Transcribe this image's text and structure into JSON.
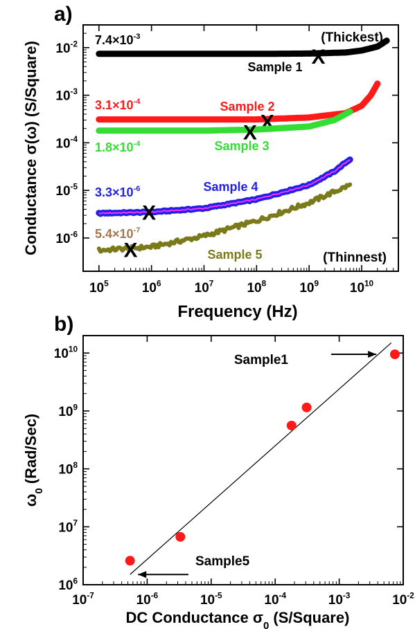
{
  "panel_a_label": "a)",
  "panel_b_label": "b)",
  "colors": {
    "sample1": "#000000",
    "sample2": "#ff1a1a",
    "sample3": "#33dd33",
    "sample4": "#1f1fe6",
    "sample4_overlay": "#ff33ff",
    "sample5": "#7a7a1a",
    "label5_value": "#a07850",
    "points_b": "#ff1a1a"
  },
  "chart_data": [
    {
      "type": "line",
      "panel": "a)",
      "xlabel": "Frequency (Hz)",
      "ylabel": "Conductance σ(ω) (S/Square)",
      "xscale": "log",
      "yscale": "log",
      "xlim": [
        50000,
        50000000000
      ],
      "ylim": [
        2e-07,
        0.03
      ],
      "xticks": [
        {
          "base": "10",
          "exp": "5"
        },
        {
          "base": "10",
          "exp": "6"
        },
        {
          "base": "10",
          "exp": "7"
        },
        {
          "base": "10",
          "exp": "8"
        },
        {
          "base": "10",
          "exp": "9"
        },
        {
          "base": "10",
          "exp": "10"
        }
      ],
      "yticks": [
        {
          "base": "10",
          "exp": "-6"
        },
        {
          "base": "10",
          "exp": "-5"
        },
        {
          "base": "10",
          "exp": "-4"
        },
        {
          "base": "10",
          "exp": "-3"
        },
        {
          "base": "10",
          "exp": "-2"
        }
      ],
      "series": [
        {
          "name": "Sample 1",
          "color_key": "sample1",
          "dc_value": "7.4×10",
          "dc_exp": "-3",
          "x": [
            100000,
            10000000,
            100000000,
            1000000000,
            5000000000,
            10000000000,
            20000000000,
            30000000000
          ],
          "y": [
            0.0074,
            0.0074,
            0.0074,
            0.0075,
            0.0079,
            0.0087,
            0.0105,
            0.014
          ],
          "crossover": [
            1500000000,
            0.0066
          ]
        },
        {
          "name": "Sample 2",
          "color_key": "sample2",
          "dc_value": "3.1×10",
          "dc_exp": "-4",
          "x": [
            100000,
            10000000,
            100000000,
            1000000000,
            5000000000,
            10000000000,
            15000000000,
            20000000000
          ],
          "y": [
            0.00031,
            0.00031,
            0.00031,
            0.00034,
            0.00042,
            0.0006,
            0.001,
            0.00175
          ],
          "crossover": [
            160000000,
            0.00028
          ]
        },
        {
          "name": "Sample 3",
          "color_key": "sample3",
          "dc_value": "1.8×10",
          "dc_exp": "-4",
          "x": [
            100000,
            10000000,
            100000000,
            1000000000,
            3000000000,
            6000000000
          ],
          "y": [
            0.00018,
            0.00018,
            0.00019,
            0.00022,
            0.0003,
            0.00045
          ],
          "crossover": [
            75000000,
            0.00017
          ]
        },
        {
          "name": "Sample 4",
          "color_key": "sample4",
          "dc_value": "3.3×10",
          "dc_exp": "-6",
          "x": [
            100000,
            1000000,
            10000000,
            100000000,
            1000000000,
            3000000000,
            6000000000
          ],
          "y": [
            3.3e-06,
            3.5e-06,
            4.2e-06,
            6.5e-06,
            1.3e-05,
            2.5e-05,
            4.5e-05
          ],
          "crossover": [
            900000,
            3.5e-06
          ]
        },
        {
          "name": "Sample 5",
          "color_key": "sample5",
          "dc_value": "5.4×10",
          "dc_exp": "-7",
          "x": [
            100000,
            1000000,
            10000000,
            100000000,
            1000000000,
            6000000000
          ],
          "y": [
            5.5e-07,
            6.5e-07,
            1.1e-06,
            2.3e-06,
            5.5e-06,
            1.3e-05
          ],
          "crossover": [
            400000,
            5.7e-07
          ]
        }
      ],
      "annotations": [
        {
          "text": "(Thickest)"
        },
        {
          "text": "(Thinnest)"
        }
      ]
    },
    {
      "type": "scatter",
      "panel": "b)",
      "xlabel_main": "DC Conductance σ",
      "xlabel_sub": "0",
      "xlabel_unit": " (S/Square)",
      "ylabel_main": "ω",
      "ylabel_sub": "0",
      "ylabel_unit": " (Rad/Sec)",
      "xscale": "log",
      "yscale": "log",
      "xlim": [
        1e-07,
        0.01
      ],
      "ylim": [
        1000000,
        20000000000
      ],
      "xticks": [
        {
          "base": "10",
          "exp": "-7"
        },
        {
          "base": "10",
          "exp": "-6"
        },
        {
          "base": "10",
          "exp": "-5"
        },
        {
          "base": "10",
          "exp": "-4"
        },
        {
          "base": "10",
          "exp": "-3"
        },
        {
          "base": "10",
          "exp": "-2"
        }
      ],
      "yticks": [
        {
          "base": "10",
          "exp": "6"
        },
        {
          "base": "10",
          "exp": "7"
        },
        {
          "base": "10",
          "exp": "8"
        },
        {
          "base": "10",
          "exp": "9"
        },
        {
          "base": "10",
          "exp": "10"
        }
      ],
      "points": [
        {
          "x": 5.4e-07,
          "y": 2600000
        },
        {
          "x": 3.3e-06,
          "y": 6700000
        },
        {
          "x": 0.00018,
          "y": 560000000
        },
        {
          "x": 0.00031,
          "y": 1150000000
        },
        {
          "x": 0.0074,
          "y": 9500000000
        }
      ],
      "fit_line": {
        "x": [
          5.4e-07,
          0.0065
        ],
        "y": [
          1500000,
          15000000000
        ]
      },
      "annotations": [
        {
          "text": "Sample1",
          "arrow_to": [
            0.0038,
            9500000000
          ]
        },
        {
          "text": "Sample5",
          "arrow_to": [
            7.2e-07,
            1500000
          ]
        }
      ]
    }
  ]
}
